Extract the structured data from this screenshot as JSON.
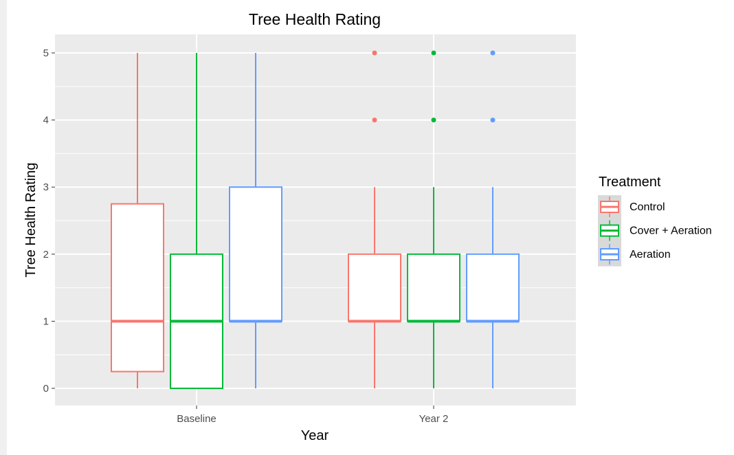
{
  "chart_data": {
    "type": "box",
    "title": "Tree Health Rating",
    "xlabel": "Year",
    "ylabel": "Tree Health Rating",
    "categories": [
      "Baseline",
      "Year 2"
    ],
    "ylim": [
      -0.25,
      5.25
    ],
    "yticks": [
      0,
      1,
      2,
      3,
      4,
      5
    ],
    "grid": true,
    "legend": {
      "title": "Treatment",
      "position": "right",
      "entries": [
        "Control",
        "Cover + Aeration",
        "Aeration"
      ]
    },
    "series": [
      {
        "name": "Control",
        "color": "#F8766D",
        "boxes": [
          {
            "category": "Baseline",
            "min": 0,
            "q1": 0.25,
            "median": 1,
            "q3": 2.75,
            "max": 5,
            "outliers": []
          },
          {
            "category": "Year 2",
            "min": 0,
            "q1": 1,
            "median": 1,
            "q3": 2,
            "max": 3,
            "outliers": [
              4,
              5
            ]
          }
        ]
      },
      {
        "name": "Cover + Aeration",
        "color": "#00BA38",
        "boxes": [
          {
            "category": "Baseline",
            "min": 0,
            "q1": 0,
            "median": 1,
            "q3": 2,
            "max": 5,
            "outliers": []
          },
          {
            "category": "Year 2",
            "min": 0,
            "q1": 1,
            "median": 1,
            "q3": 2,
            "max": 3,
            "outliers": [
              4,
              5
            ]
          }
        ]
      },
      {
        "name": "Aeration",
        "color": "#619CFF",
        "boxes": [
          {
            "category": "Baseline",
            "min": 0,
            "q1": 1,
            "median": 1,
            "q3": 3,
            "max": 5,
            "outliers": []
          },
          {
            "category": "Year 2",
            "min": 0,
            "q1": 1,
            "median": 1,
            "q3": 2,
            "max": 3,
            "outliers": [
              4,
              5
            ]
          }
        ]
      }
    ]
  }
}
